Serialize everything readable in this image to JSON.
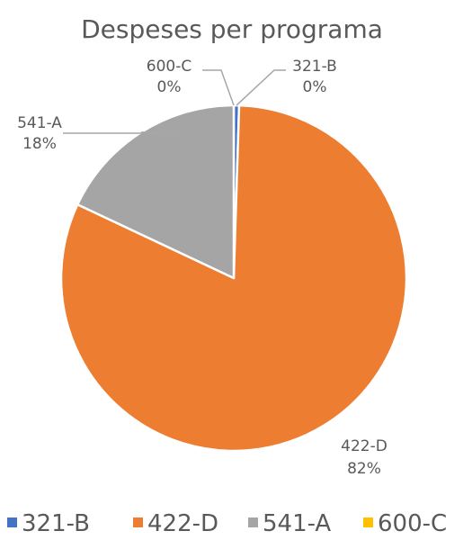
{
  "chart_data": {
    "type": "pie",
    "title": "Despeses per programa",
    "categories": [
      "321-B",
      "422-D",
      "541-A",
      "600-C"
    ],
    "values": [
      0.5,
      81.5,
      18.0,
      0.0
    ],
    "data_labels": [
      "0%",
      "82%",
      "18%",
      "0%"
    ],
    "colors": [
      "#4472C4",
      "#ED7D31",
      "#A5A5A5",
      "#FFC000"
    ],
    "legend_position": "bottom",
    "start_angle_deg": 0,
    "direction": "clockwise"
  }
}
